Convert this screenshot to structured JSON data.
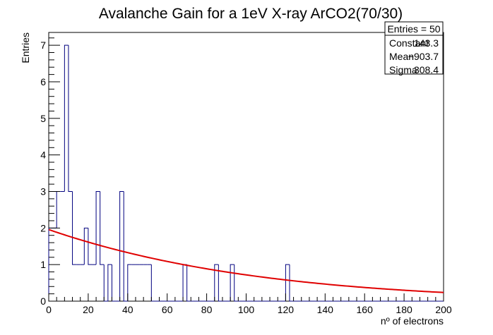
{
  "chart_data": {
    "type": "histogram",
    "title": "Avalanche Gain for a 1eV X-ray ArCO2(70/30)",
    "xlabel": "nº of electrons",
    "ylabel": "Entries",
    "xlim": [
      0,
      200
    ],
    "ylim": [
      0,
      7.35
    ],
    "x_ticks": [
      0,
      20,
      40,
      60,
      80,
      100,
      120,
      140,
      160,
      180,
      200
    ],
    "y_ticks": [
      0,
      1,
      2,
      3,
      4,
      5,
      6,
      7
    ],
    "bin_width": 2,
    "histogram": {
      "name": "Entries",
      "color": "#00007f",
      "bin_low_edges": [
        0,
        2,
        4,
        6,
        8,
        10,
        12,
        14,
        16,
        18,
        20,
        22,
        24,
        26,
        28,
        30,
        32,
        34,
        36,
        38,
        40,
        42,
        44,
        46,
        48,
        50,
        52,
        54,
        56,
        58,
        60,
        62,
        64,
        66,
        68,
        70,
        72,
        74,
        76,
        78,
        80,
        82,
        84,
        86,
        88,
        90,
        92,
        94,
        96,
        98,
        100,
        102,
        104,
        106,
        108,
        110,
        112,
        114,
        116,
        118,
        120,
        122,
        124,
        126,
        128,
        130,
        132,
        134,
        136,
        138,
        140,
        142,
        144,
        146,
        148,
        150,
        152,
        154,
        156,
        158,
        160,
        162,
        164,
        166,
        168,
        170,
        172,
        174,
        176,
        178,
        180,
        182,
        184,
        186,
        188,
        190,
        192,
        194,
        196,
        198
      ],
      "counts": [
        2,
        2,
        3,
        3,
        7,
        3,
        1,
        1,
        1,
        2,
        1,
        1,
        3,
        1,
        0,
        1,
        0,
        0,
        3,
        0,
        1,
        1,
        1,
        1,
        1,
        1,
        0,
        0,
        0,
        0,
        0,
        0,
        0,
        0,
        1,
        0,
        0,
        0,
        0,
        0,
        0,
        0,
        1,
        0,
        0,
        0,
        1,
        0,
        0,
        0,
        0,
        0,
        0,
        0,
        0,
        0,
        0,
        0,
        0,
        0,
        1,
        0,
        0,
        0,
        0,
        0,
        0,
        0,
        0,
        0,
        0,
        0,
        0,
        0,
        0,
        0,
        0,
        0,
        0,
        0,
        0,
        0,
        0,
        0,
        0,
        0,
        0,
        0,
        0,
        0,
        0,
        0,
        0,
        0,
        0,
        0,
        0,
        0,
        0,
        0
      ]
    },
    "fit": {
      "function": "gaus",
      "color": "#e00000",
      "constant": 143.3,
      "mean": -903.7,
      "sigma": 308.4
    },
    "stats_box": {
      "placement": "top-right",
      "entries_label": "Entries = 50",
      "rows": [
        {
          "label": "Constant",
          "value": "143.3"
        },
        {
          "label": "Mean",
          "value": "−903.7"
        },
        {
          "label": "Sigma",
          "value": "308.4"
        }
      ]
    }
  }
}
